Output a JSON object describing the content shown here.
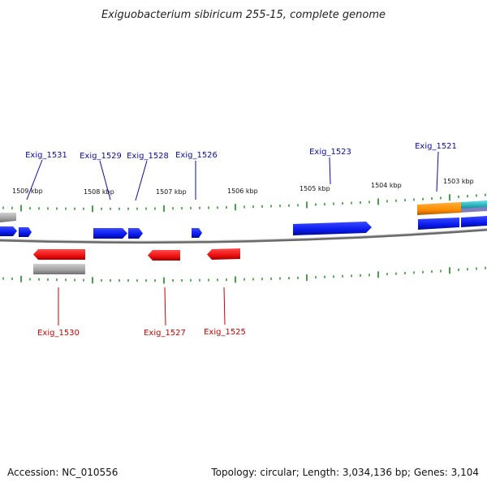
{
  "title": "Exiguobacterium sibiricum 255-15, complete genome",
  "footer": {
    "accession": "Accession: NC_010556",
    "topology": "Topology: circular; Length: 3,034,136 bp; Genes: 3,104"
  },
  "ruler_labels": [
    "1509 kbp",
    "1508 kbp",
    "1507 kbp",
    "1506 kbp",
    "1505 kbp",
    "1504 kbp",
    "1503 kbp"
  ],
  "gene_labels_top": [
    "Exig_1531",
    "Exig_1529",
    "Exig_1528",
    "Exig_1526",
    "Exig_1523",
    "Exig_1521"
  ],
  "gene_labels_bottom": [
    "Exig_1530",
    "Exig_1527",
    "Exig_1525"
  ],
  "colors": {
    "forward_gene": "#0a1aff",
    "reverse_gene": "#ff1010",
    "forward_label": "#0a0aaa",
    "reverse_label": "#cc0000",
    "tick": "#1a8a1a",
    "backbone": "#808080",
    "orange_feature": "#ff8c00",
    "cyan_feature": "#20c0c8",
    "gray_feature": "#909090"
  }
}
